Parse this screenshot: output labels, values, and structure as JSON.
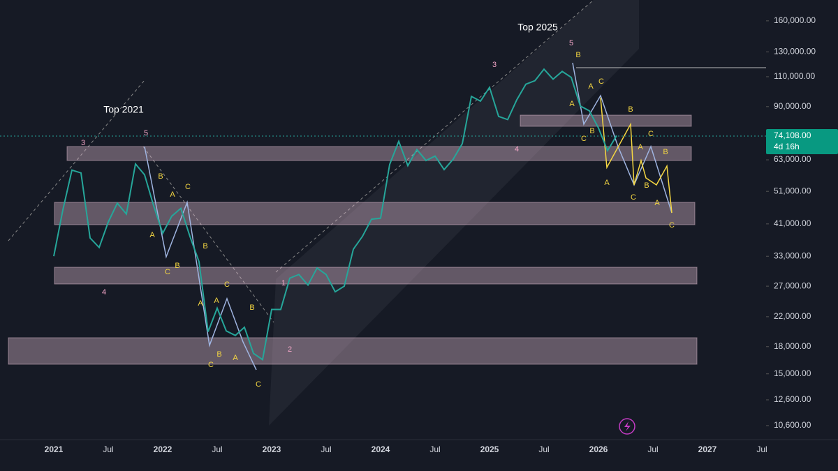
{
  "chart_data": {
    "type": "line",
    "log_scale": true,
    "ylim": [
      9650,
      184000
    ],
    "yticks": [
      {
        "value": 160000,
        "label": "160,000.00"
      },
      {
        "value": 130000,
        "label": "130,000.00"
      },
      {
        "value": 110000,
        "label": "110,000.00"
      },
      {
        "value": 90000,
        "label": "90,000.00"
      },
      {
        "value": 63000,
        "label": "63,000.00"
      },
      {
        "value": 51000,
        "label": "51,000.00"
      },
      {
        "value": 41000,
        "label": "41,000.00"
      },
      {
        "value": 33000,
        "label": "33,000.00"
      },
      {
        "value": 27000,
        "label": "27,000.00"
      },
      {
        "value": 22000,
        "label": "22,000.00"
      },
      {
        "value": 18000,
        "label": "18,000.00"
      },
      {
        "value": 15000,
        "label": "15,000.00"
      },
      {
        "value": 12600,
        "label": "12,600.00"
      },
      {
        "value": 10600,
        "label": "10,600.00"
      }
    ],
    "x_labels": [
      "2021",
      "Jul",
      "2022",
      "Jul",
      "2023",
      "Jul",
      "2024",
      "Jul",
      "2025",
      "Jul",
      "2026",
      "Jul",
      "2027",
      "Jul"
    ],
    "series": [
      {
        "color": "#26a69a",
        "values": [
          33000,
          45000,
          58800,
          57700,
          37300,
          35000,
          41500,
          47100,
          43800,
          61300,
          57000,
          46300,
          38500,
          43200,
          45500,
          37700,
          31800,
          19900,
          23300,
          20000,
          19400,
          20500,
          17200,
          16500,
          23100,
          23100,
          28500,
          29200,
          27200,
          30500,
          29200,
          26000,
          27000,
          34600,
          37700,
          42300,
          42600,
          61100,
          71300,
          60600,
          67500,
          62700,
          64600,
          59000,
          63300,
          70200,
          96400,
          93400,
          102400,
          84300,
          82500,
          94200,
          104600,
          107100,
          115700,
          108200,
          114000,
          109500,
          90400,
          87500,
          78000,
          67000,
          74108
        ]
      }
    ],
    "price_tag": {
      "value": 74108,
      "label": "74,108.00",
      "countdown": "4d 16h"
    }
  },
  "annotations": {
    "tops": [
      "Top 2021",
      "Top 2025"
    ],
    "waves": [
      "3",
      "5",
      "4",
      "A",
      "B",
      "A",
      "C",
      "C",
      "B",
      "B",
      "A",
      "A",
      "C",
      "C",
      "B",
      "A",
      "B",
      "C",
      "1",
      "2",
      "3",
      "4",
      "5",
      "B",
      "A",
      "C",
      "A",
      "B",
      "C",
      "B",
      "A",
      "C",
      "B",
      "A",
      "B",
      "C",
      "A",
      "C"
    ]
  }
}
